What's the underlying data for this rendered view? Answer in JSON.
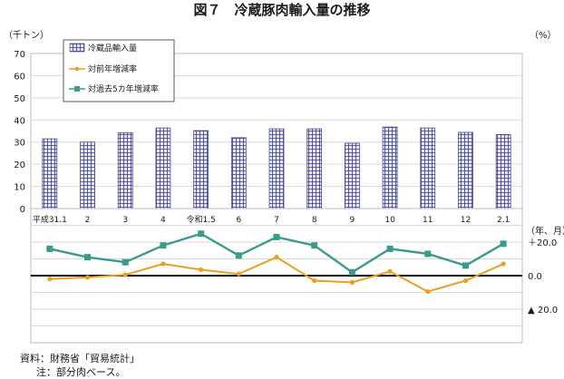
{
  "title": "図７　冷蔵豚肉輸入量の推移",
  "units": {
    "left": "（千トン）",
    "right_pct": "（%）",
    "period": "（年、月）"
  },
  "colors": {
    "bar_fill": "#e6e6f5",
    "bar_grid": "#3a3a8c",
    "yoy": "#e8a020",
    "vs5yr": "#3a9a8c",
    "grid": "#d9d9d9",
    "zero": "#000000"
  },
  "legend": {
    "bar": "冷蔵品輸入量",
    "yoy": "対前年増減率",
    "vs5yr": "対過去5カ年増減率"
  },
  "chart_data": {
    "type": "bar",
    "title": "図７　冷蔵豚肉輸入量の推移",
    "categories": [
      "平成31.1",
      "2",
      "3",
      "4",
      "令和1.5",
      "6",
      "7",
      "8",
      "9",
      "10",
      "11",
      "12",
      "2.1"
    ],
    "ylabel": "（千トン）",
    "ylim": [
      0,
      70
    ],
    "yticks": [
      "0",
      "10",
      "20",
      "30",
      "40",
      "50",
      "60",
      "70"
    ],
    "grid": true,
    "legend_position": "top-left",
    "series": [
      {
        "name": "冷蔵品輸入量",
        "kind": "bar",
        "values": [
          31.5,
          30.0,
          34.2,
          36.4,
          35.2,
          32.0,
          36.0,
          36.0,
          29.5,
          36.8,
          36.4,
          34.4,
          33.4
        ]
      }
    ],
    "pct_panel": {
      "type": "line",
      "ylabel": "（%）",
      "period_label": "（年、月）",
      "ylim": [
        -40,
        40
      ],
      "ytick_labels": [
        {
          "value": 20,
          "label": "＋20.0"
        },
        {
          "value": 0,
          "label": "0.0"
        },
        {
          "value": -20,
          "label": "▲ 20.0"
        }
      ],
      "series": [
        {
          "name": "対前年増減率",
          "values": [
            -2,
            -1,
            0.5,
            7,
            3.5,
            1,
            11,
            -3,
            -4,
            2.5,
            -9.5,
            -3,
            7
          ]
        },
        {
          "name": "対過去5カ年増減率",
          "values": [
            16,
            11,
            8,
            18,
            25,
            12,
            23,
            18,
            2,
            16,
            13,
            6,
            19
          ]
        }
      ]
    }
  },
  "notes": {
    "source": "資料：財務省「貿易統計」",
    "note": "注：部分肉ベース。"
  }
}
